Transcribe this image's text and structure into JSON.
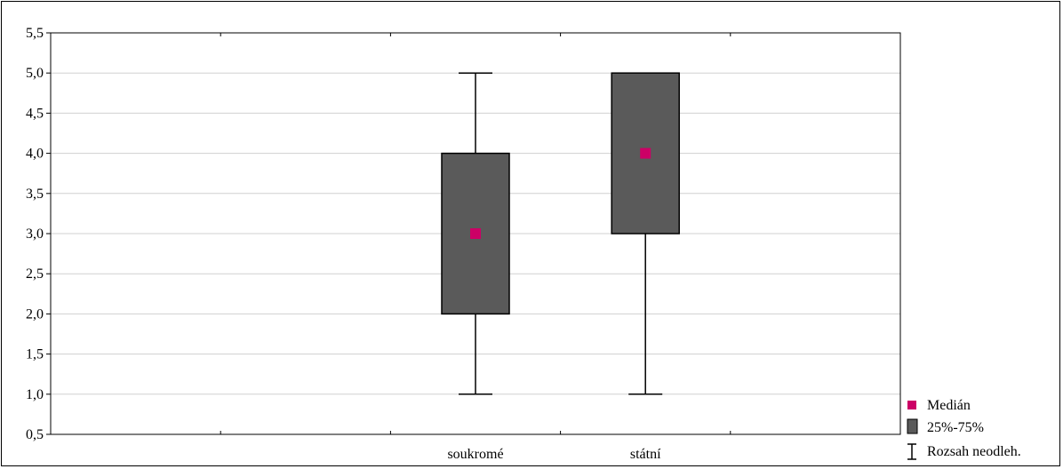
{
  "chart_data": {
    "type": "boxplot",
    "categories": [
      "soukromé",
      "státní"
    ],
    "series": [
      {
        "category": "soukromé",
        "median": 3.0,
        "q1": 2.0,
        "q3": 4.0,
        "min": 1.0,
        "max": 5.0
      },
      {
        "category": "státní",
        "median": 4.0,
        "q1": 3.0,
        "q3": 5.0,
        "min": 1.0,
        "max": 5.0
      }
    ],
    "ylim": [
      0.5,
      5.5
    ],
    "yticks": [
      "0,5",
      "1,0",
      "1,5",
      "2,0",
      "2,5",
      "3,0",
      "3,5",
      "4,0",
      "4,5",
      "5,0",
      "5,5"
    ],
    "grid": true,
    "legend_position": "bottom-right",
    "legend": [
      {
        "key": "median",
        "label": "Medián"
      },
      {
        "key": "box",
        "label": "25%-75%"
      },
      {
        "key": "range",
        "label": "Rozsah neodleh."
      }
    ],
    "colors": {
      "box": "#5a5a5a",
      "median": "#cc0066",
      "grid": "#d0d0d0",
      "line": "#000000"
    }
  }
}
